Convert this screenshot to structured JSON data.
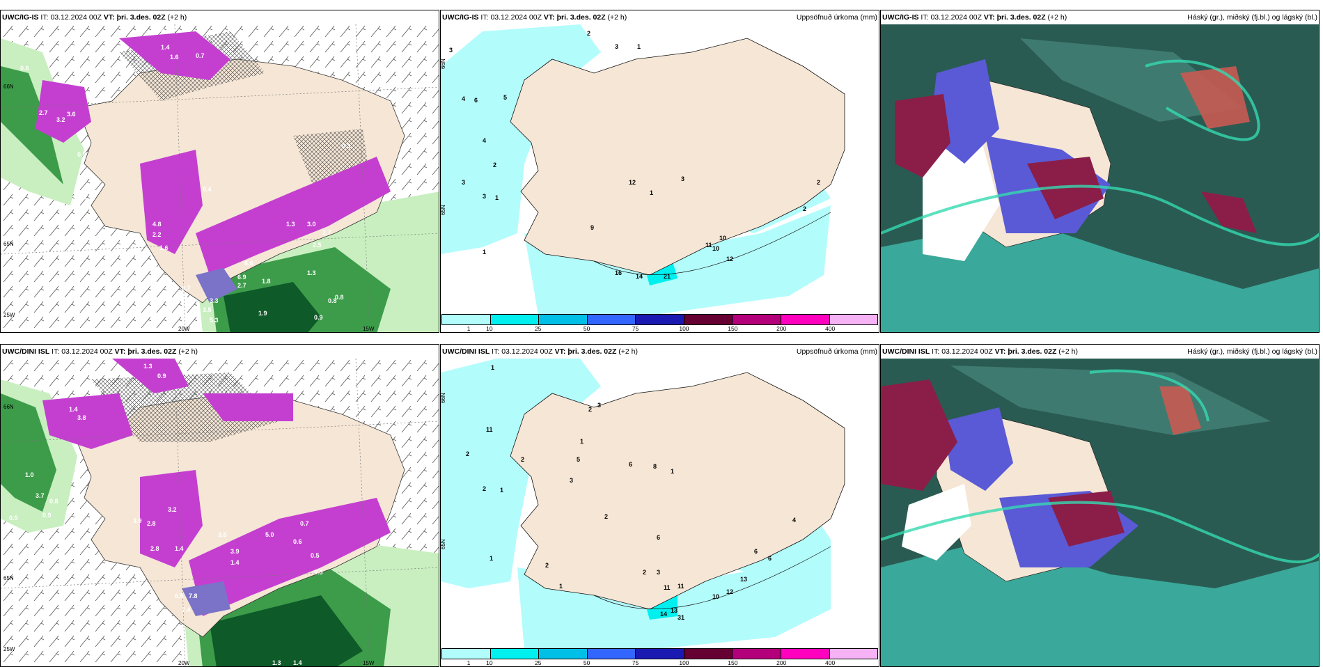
{
  "rows": [
    {
      "model": "UWC/IG-IS",
      "it_label": "IT:",
      "it_value": "03.12.2024 00Z",
      "vt_label": "VT:",
      "vt_value": "þri. 3.des. 02Z",
      "lead": "(+2 h)",
      "panels": [
        {
          "title": ""
        },
        {
          "title": "Uppsöfnuð úrkoma (mm)"
        },
        {
          "title": "Háský (gr.), miðský (fj.bl.) og lágský (bl.)"
        }
      ],
      "axis_labels": [
        "65N",
        "66N",
        "25W",
        "20W",
        "15W"
      ],
      "wind_labels": [
        "1.3",
        "1.4",
        "1.6",
        "0.7",
        "0.9",
        "0.6",
        "2.7",
        "3.6",
        "3.2",
        "0.9",
        "2.0",
        "4.8",
        "2.2",
        "1.6",
        "0.4",
        "3.0",
        "2.7",
        "2.5",
        "1.3",
        "6.6",
        "6.9",
        "2.7",
        "1.8",
        "3.3",
        "3.5",
        "5.3",
        "1.9",
        "1.3",
        "0.8",
        "0.8",
        "0.9",
        "0.7",
        "0.3"
      ],
      "precip_labels": [
        "2",
        "3",
        "1",
        "3",
        "4",
        "6",
        "5",
        "4",
        "2",
        "3",
        "3",
        "1",
        "9",
        "1",
        "12",
        "3",
        "1",
        "2",
        "2",
        "11",
        "10",
        "10",
        "12",
        "16",
        "14",
        "21"
      ]
    },
    {
      "model": "UWC/DINI ISL",
      "it_label": "IT:",
      "it_value": "03.12.2024 00Z",
      "vt_label": "VT:",
      "vt_value": "þri. 3.des. 02Z",
      "lead": "(+2 h)",
      "panels": [
        {
          "title": ""
        },
        {
          "title": "Uppsöfnuð úrkoma (mm)"
        },
        {
          "title": "Háský (gr.), miðský (fj.bl.) og lágský (bl.)"
        }
      ],
      "axis_labels": [
        "65N",
        "66N",
        "25W",
        "20W",
        "15W"
      ],
      "wind_labels": [
        "1.3",
        "0.9",
        "1.4",
        "3.8",
        "1.0",
        "3.7",
        "0.8",
        "0.5",
        "0.9",
        "3.9",
        "2.8",
        "2.8",
        "3.2",
        "1.4",
        "3.5",
        "3.9",
        "1.4",
        "5.0",
        "6.5",
        "7.8",
        "7.4",
        "1.6",
        "6.9",
        "1.3",
        "1.4",
        "0.7",
        "0.5",
        "0.6",
        "0.3"
      ],
      "precip_labels": [
        "1",
        "3",
        "2",
        "1",
        "2",
        "11",
        "2",
        "5",
        "3",
        "2",
        "2",
        "1",
        "6",
        "8",
        "1",
        "6",
        "2",
        "1",
        "1",
        "2",
        "3",
        "4",
        "11",
        "11",
        "10",
        "12",
        "13",
        "6",
        "6",
        "14",
        "13",
        "31"
      ]
    }
  ],
  "legend": {
    "ticks": [
      "1",
      "10",
      "25",
      "50",
      "75",
      "100",
      "150",
      "200",
      "400"
    ],
    "colors": [
      "#b3fcfc",
      "#00f0f0",
      "#00bfe6",
      "#3366ff",
      "#1a1ab3",
      "#660033",
      "#b3007a",
      "#ff00bf",
      "#f5b3f5"
    ]
  },
  "colors": {
    "land": "#f5e6d6",
    "wind_precip_light": "#c9efc0",
    "wind_precip_mid": "#3d9c4a",
    "wind_precip_dark": "#0e5a28",
    "magenta": "#c43fd0",
    "cloud_dark": "#2a5b52",
    "cloud_teal": "#3aa89a",
    "cloud_blue": "#5a5ad6",
    "cloud_maroon": "#8b1e48",
    "cloud_red": "#c85a52"
  }
}
